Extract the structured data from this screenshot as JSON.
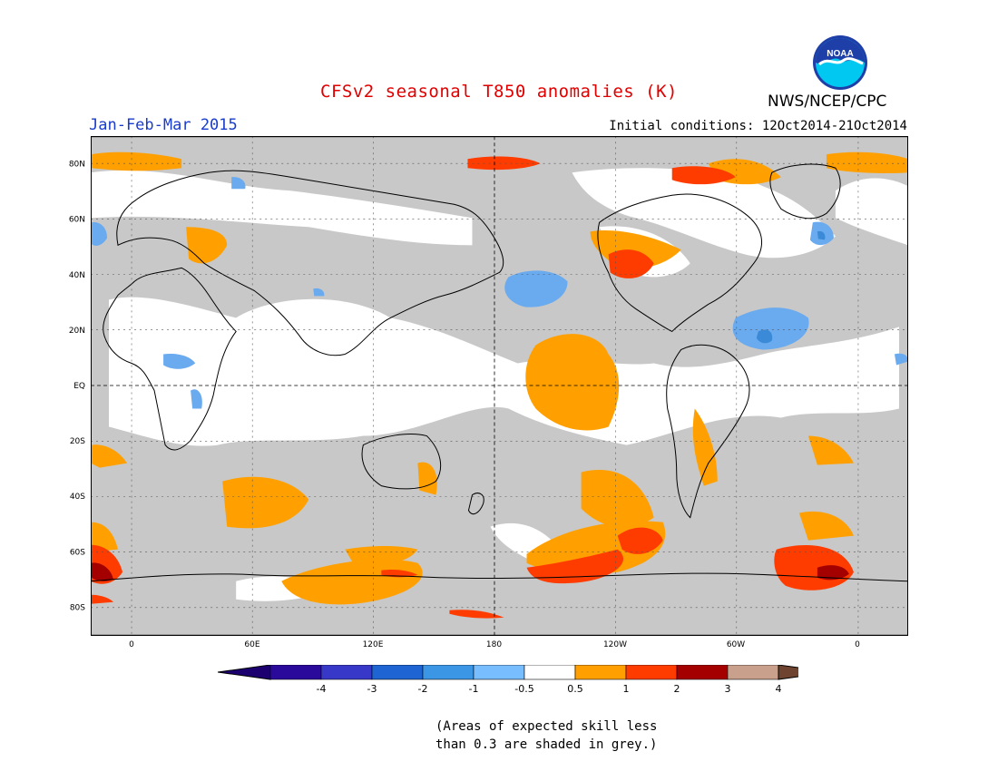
{
  "title": "CFSv2 seasonal T850 anomalies (K)",
  "season": "Jan-Feb-Mar 2015",
  "initial_conditions": "Initial conditions: 12Oct2014-21Oct2014",
  "organization": "NWS/NCEP/CPC",
  "logo_text": "NOAA",
  "map": {
    "lat_ticks": [
      "80N",
      "60N",
      "40N",
      "20N",
      "EQ",
      "20S",
      "40S",
      "60S",
      "80S"
    ],
    "lon_ticks": [
      "0",
      "60E",
      "120E",
      "180",
      "120W",
      "60W",
      "0"
    ],
    "skill_shading": "grey",
    "colors": {
      "grey": "#c8c8c8",
      "blue_light": "#6aaaee",
      "blue_mid": "#3a8ad8",
      "orange": "#ffa000",
      "red_orange": "#ff3c00",
      "dark_red": "#a50000",
      "ocean_neutral": "#ffffff"
    }
  },
  "colorbar": {
    "labels": [
      "-4",
      "-3",
      "-2",
      "-1",
      "-0.5",
      "0.5",
      "1",
      "2",
      "3",
      "4"
    ],
    "colors": [
      "#2a0a9a",
      "#3838c8",
      "#1e64d2",
      "#3c96e6",
      "#78beff",
      "#ffffff",
      "#ffa000",
      "#ff3c00",
      "#a50000",
      "#c8a08c"
    ],
    "low_arrow_color": "#1c0070",
    "high_arrow_color": "#6e4430"
  },
  "note_line1": "(Areas of expected skill less",
  "note_line2": "than 0.3 are shaded in grey.)"
}
